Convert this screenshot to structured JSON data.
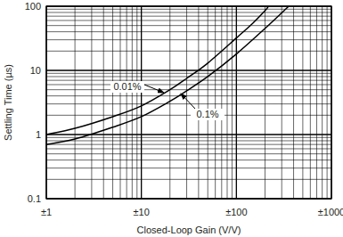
{
  "chart_data": {
    "type": "line",
    "x_label": "Closed-Loop Gain (V/V)",
    "y_label": "Settling Time (µs)",
    "log": true,
    "grid": true,
    "xlim": [
      1,
      1000
    ],
    "ylim": [
      0.1,
      100
    ],
    "xticks": [
      {
        "value": 1,
        "label": "±1"
      },
      {
        "value": 10,
        "label": "±10"
      },
      {
        "value": 100,
        "label": "±100"
      },
      {
        "value": 1000,
        "label": "±1000"
      }
    ],
    "yticks": [
      0.1,
      1,
      10,
      100
    ],
    "series": [
      {
        "name": "0.01%",
        "color": "#000000",
        "x": [
          1,
          2,
          5,
          10,
          20,
          30,
          50,
          100,
          150,
          200,
          217
        ],
        "values": [
          1.0,
          1.25,
          1.9,
          2.8,
          5,
          7.5,
          13,
          32,
          55,
          85,
          100
        ]
      },
      {
        "name": "0.1%",
        "color": "#000000",
        "x": [
          1,
          2,
          5,
          10,
          20,
          30,
          50,
          100,
          200,
          355
        ],
        "values": [
          0.7,
          0.85,
          1.3,
          1.9,
          3.3,
          4.8,
          8,
          18,
          45,
          100
        ]
      }
    ]
  }
}
